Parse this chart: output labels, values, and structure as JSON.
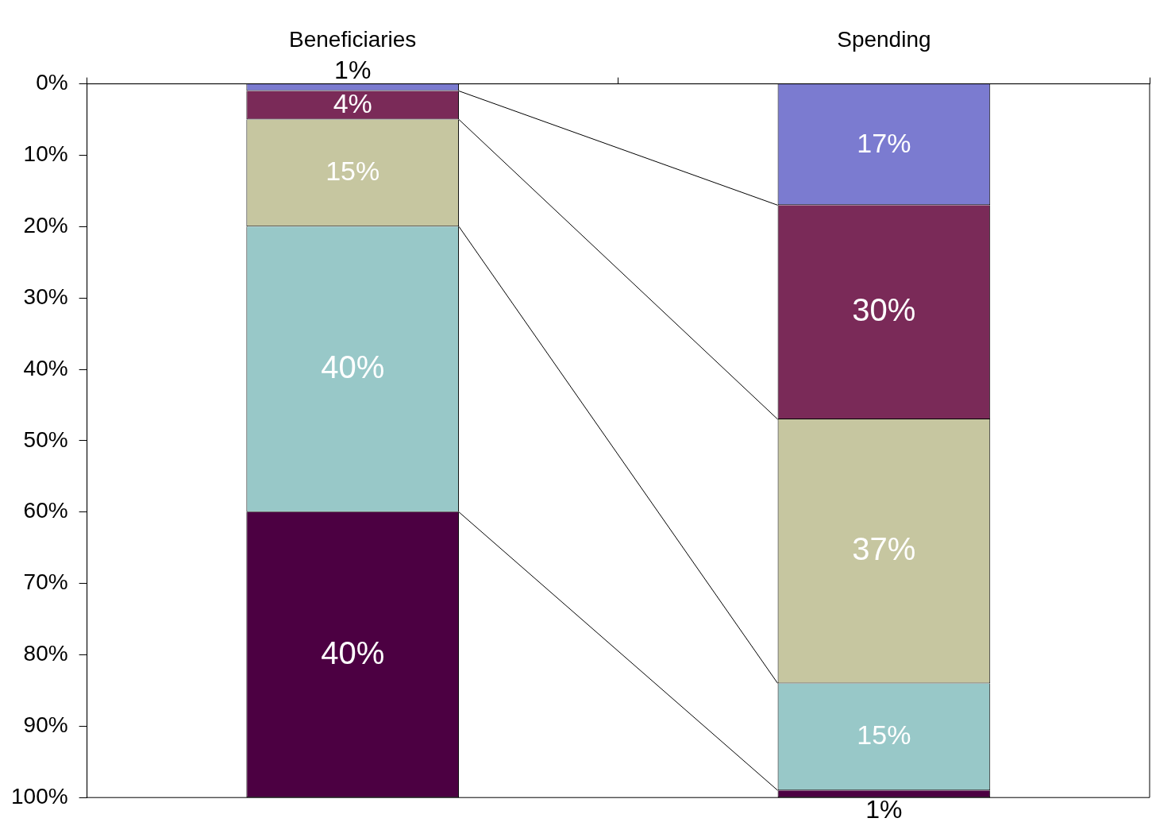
{
  "chart_data": {
    "type": "bar",
    "stacked": true,
    "categories": [
      "Beneficiaries",
      "Spending"
    ],
    "series": [
      {
        "color": "#7b7bd0",
        "values": [
          1,
          17
        ],
        "value_labels": [
          "1%",
          "17%"
        ]
      },
      {
        "color": "#7a2a58",
        "values": [
          4,
          30
        ],
        "value_labels": [
          "4%",
          "30%"
        ]
      },
      {
        "color": "#c6c6a0",
        "values": [
          15,
          37
        ],
        "value_labels": [
          "15%",
          "37%"
        ]
      },
      {
        "color": "#98c8c8",
        "values": [
          40,
          15
        ],
        "value_labels": [
          "40%",
          "15%"
        ]
      },
      {
        "color": "#4c0042",
        "values": [
          40,
          1
        ],
        "value_labels": [
          "40%",
          "1%"
        ]
      }
    ],
    "ylim": [
      100,
      0
    ],
    "yticks": [
      {
        "value": 0,
        "label": "0%"
      },
      {
        "value": 10,
        "label": "10%"
      },
      {
        "value": 20,
        "label": "20%"
      },
      {
        "value": 30,
        "label": "30%"
      },
      {
        "value": 40,
        "label": "40%"
      },
      {
        "value": 50,
        "label": "50%"
      },
      {
        "value": 60,
        "label": "60%"
      },
      {
        "value": 70,
        "label": "70%"
      },
      {
        "value": 80,
        "label": "80%"
      },
      {
        "value": 90,
        "label": "90%"
      },
      {
        "value": 100,
        "label": "100%"
      }
    ],
    "grid": false,
    "legend": false
  }
}
